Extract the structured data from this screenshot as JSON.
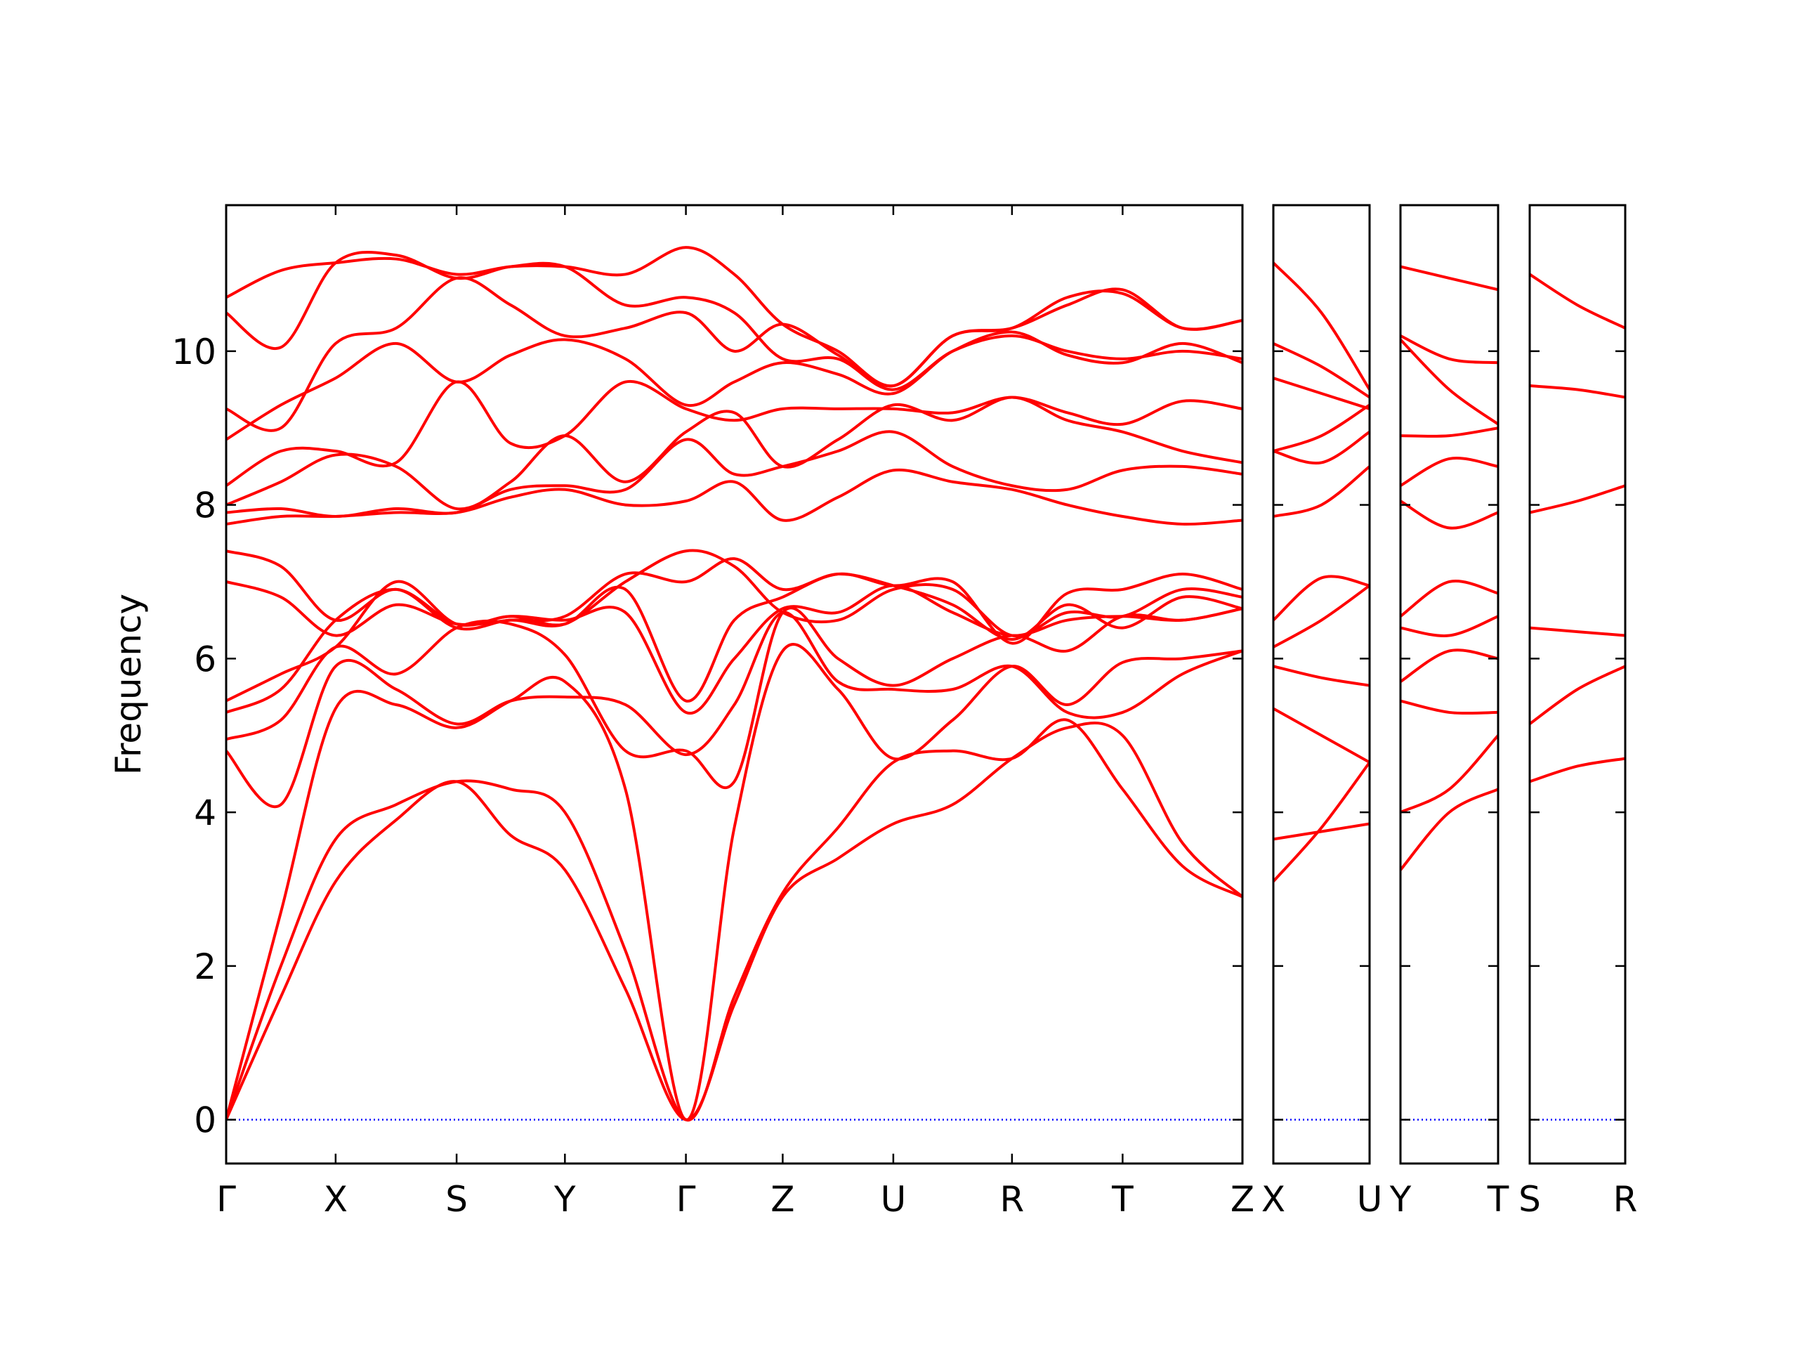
{
  "chart_data": [
    {
      "type": "line",
      "ylabel": "Frequency",
      "color": "#ff0000",
      "hline": 0,
      "hline_color": "#0000ff",
      "xlim": [
        0,
        882
      ],
      "ylim": [
        -0.57,
        11.9
      ],
      "yticks": [
        0,
        2,
        4,
        6,
        8,
        10
      ],
      "xticks": [
        {
          "value": 0,
          "label": "Γ"
        },
        {
          "value": 95,
          "label": "X"
        },
        {
          "value": 200,
          "label": "S"
        },
        {
          "value": 294,
          "label": "Y"
        },
        {
          "value": 399,
          "label": "Γ"
        },
        {
          "value": 483,
          "label": "Z"
        },
        {
          "value": 579,
          "label": "U"
        },
        {
          "value": 682,
          "label": "R"
        },
        {
          "value": 778,
          "label": "T"
        },
        {
          "value": 882,
          "label": "Z"
        }
      ],
      "x": [
        0,
        47.5,
        95,
        147.5,
        200,
        247,
        294,
        346.5,
        399,
        441,
        483,
        531,
        579,
        630.5,
        682,
        730,
        778,
        830,
        882
      ],
      "series": [
        {
          "values": [
            0,
            1.6,
            3.1,
            3.9,
            4.4,
            3.7,
            3.25,
            1.7,
            0,
            1.5,
            2.9,
            3.4,
            3.85,
            4.1,
            4.7,
            5.1,
            5.0,
            3.6,
            2.9
          ]
        },
        {
          "values": [
            0,
            2.0,
            3.65,
            4.1,
            4.4,
            4.3,
            4.0,
            2.2,
            0,
            1.6,
            2.95,
            3.8,
            4.65,
            4.8,
            4.7,
            5.2,
            4.3,
            3.3,
            2.9
          ]
        },
        {
          "values": [
            0,
            2.7,
            5.35,
            5.4,
            5.1,
            5.45,
            5.7,
            4.3,
            0,
            3.8,
            6.1,
            5.6,
            4.7,
            5.2,
            5.9,
            5.4,
            5.95,
            6.0,
            6.1
          ]
        },
        {
          "values": [
            4.8,
            4.1,
            5.9,
            5.6,
            5.15,
            5.45,
            5.5,
            5.4,
            4.75,
            5.4,
            6.6,
            5.7,
            5.6,
            5.6,
            5.9,
            5.3,
            5.3,
            5.8,
            6.1
          ]
        },
        {
          "values": [
            4.95,
            5.2,
            6.15,
            5.8,
            6.4,
            6.45,
            6.05,
            4.8,
            4.8,
            4.4,
            6.6,
            6.0,
            5.65,
            6.0,
            6.3,
            6.1,
            6.55,
            6.5,
            6.65
          ]
        },
        {
          "values": [
            5.3,
            5.6,
            6.5,
            6.9,
            6.45,
            6.55,
            6.5,
            6.6,
            5.3,
            6.0,
            6.65,
            6.6,
            6.95,
            6.6,
            6.3,
            6.5,
            6.55,
            6.5,
            6.65
          ]
        },
        {
          "values": [
            5.45,
            5.8,
            6.15,
            7.0,
            6.45,
            6.55,
            6.45,
            6.9,
            5.45,
            6.5,
            6.8,
            7.1,
            6.95,
            7.0,
            6.2,
            6.85,
            6.9,
            7.1,
            6.9
          ]
        },
        {
          "values": [
            7.0,
            6.8,
            6.3,
            6.7,
            6.45,
            6.5,
            6.55,
            7.1,
            7.0,
            7.3,
            6.9,
            7.1,
            6.95,
            6.7,
            6.25,
            6.7,
            6.4,
            6.8,
            6.65
          ]
        },
        {
          "values": [
            7.4,
            7.2,
            6.5,
            6.9,
            6.4,
            6.5,
            6.45,
            7.0,
            7.4,
            7.2,
            6.6,
            6.5,
            6.9,
            6.9,
            6.3,
            6.6,
            6.55,
            6.9,
            6.8
          ]
        },
        {
          "values": [
            7.75,
            7.85,
            7.85,
            7.9,
            7.9,
            8.1,
            8.2,
            8.0,
            8.05,
            8.3,
            7.8,
            8.1,
            8.45,
            8.3,
            8.2,
            8.0,
            7.85,
            7.75,
            7.8
          ]
        },
        {
          "values": [
            7.9,
            7.95,
            7.85,
            7.95,
            7.9,
            8.2,
            8.25,
            8.2,
            8.85,
            8.4,
            8.5,
            8.7,
            8.95,
            8.5,
            8.25,
            8.2,
            8.45,
            8.5,
            8.4
          ]
        },
        {
          "values": [
            8.0,
            8.3,
            8.65,
            8.5,
            7.95,
            8.3,
            8.9,
            8.3,
            8.95,
            9.2,
            8.5,
            8.85,
            9.3,
            9.1,
            9.4,
            9.1,
            8.95,
            8.7,
            8.55
          ]
        },
        {
          "values": [
            8.25,
            8.7,
            8.7,
            8.55,
            9.6,
            8.8,
            8.9,
            9.6,
            9.25,
            9.1,
            9.25,
            9.25,
            9.25,
            9.2,
            9.4,
            9.2,
            9.05,
            9.35,
            9.25
          ]
        },
        {
          "values": [
            8.85,
            9.3,
            9.65,
            10.1,
            9.6,
            9.95,
            10.15,
            9.9,
            9.3,
            9.6,
            9.85,
            9.7,
            9.45,
            10.0,
            10.25,
            9.95,
            9.85,
            10.1,
            9.85
          ]
        },
        {
          "values": [
            9.25,
            9.0,
            10.1,
            10.3,
            10.95,
            10.6,
            10.2,
            10.3,
            10.5,
            10.0,
            10.35,
            9.95,
            9.55,
            10.2,
            10.3,
            10.7,
            10.75,
            10.3,
            10.4
          ]
        },
        {
          "values": [
            10.5,
            10.05,
            11.15,
            11.25,
            10.95,
            11.1,
            11.1,
            10.6,
            10.7,
            10.5,
            9.9,
            9.9,
            9.5,
            10.0,
            10.2,
            10.0,
            9.9,
            10.0,
            9.9
          ]
        },
        {
          "values": [
            10.7,
            11.05,
            11.15,
            11.2,
            11.0,
            11.1,
            11.1,
            11.0,
            11.35,
            11.0,
            10.35,
            10.0,
            9.55,
            10.2,
            10.3,
            10.6,
            10.8,
            10.3,
            10.4
          ]
        }
      ]
    },
    {
      "type": "line",
      "color": "#ff0000",
      "hline": 0,
      "hline_color": "#0000ff",
      "xlim": [
        0,
        1
      ],
      "ylim": [
        -0.57,
        11.9
      ],
      "yticks": [
        0,
        2,
        4,
        6,
        8,
        10
      ],
      "xticks": [
        {
          "value": 0,
          "label": "X"
        },
        {
          "value": 1,
          "label": "U"
        }
      ],
      "x": [
        0,
        0.5,
        1
      ],
      "series": [
        {
          "values": [
            3.1,
            3.8,
            4.65
          ]
        },
        {
          "values": [
            3.65,
            3.75,
            3.85
          ]
        },
        {
          "values": [
            5.35,
            5.0,
            4.65
          ]
        },
        {
          "values": [
            5.9,
            5.75,
            5.65
          ]
        },
        {
          "values": [
            6.15,
            6.5,
            6.95
          ]
        },
        {
          "values": [
            6.5,
            7.05,
            6.95
          ]
        },
        {
          "values": [
            7.85,
            8.0,
            8.5
          ]
        },
        {
          "values": [
            8.7,
            8.55,
            8.95
          ]
        },
        {
          "values": [
            8.7,
            8.9,
            9.3
          ]
        },
        {
          "values": [
            9.65,
            9.45,
            9.25
          ]
        },
        {
          "values": [
            10.1,
            9.8,
            9.4
          ]
        },
        {
          "values": [
            11.15,
            10.5,
            9.5
          ]
        }
      ]
    },
    {
      "type": "line",
      "color": "#ff0000",
      "hline": 0,
      "hline_color": "#0000ff",
      "xlim": [
        0,
        1
      ],
      "ylim": [
        -0.57,
        11.9
      ],
      "yticks": [
        0,
        2,
        4,
        6,
        8,
        10
      ],
      "xticks": [
        {
          "value": 0,
          "label": "Y"
        },
        {
          "value": 1,
          "label": "T"
        }
      ],
      "x": [
        0,
        0.5,
        1
      ],
      "series": [
        {
          "values": [
            3.25,
            4.0,
            4.3
          ]
        },
        {
          "values": [
            4.0,
            4.3,
            5.0
          ]
        },
        {
          "values": [
            5.45,
            5.3,
            5.3
          ]
        },
        {
          "values": [
            5.7,
            6.1,
            6.0
          ]
        },
        {
          "values": [
            6.4,
            6.3,
            6.55
          ]
        },
        {
          "values": [
            6.55,
            7.0,
            6.85
          ]
        },
        {
          "values": [
            8.25,
            8.6,
            8.5
          ]
        },
        {
          "values": [
            8.05,
            7.7,
            7.9
          ]
        },
        {
          "values": [
            8.9,
            8.9,
            9.0
          ]
        },
        {
          "values": [
            10.15,
            9.5,
            9.05
          ]
        },
        {
          "values": [
            10.2,
            9.9,
            9.85
          ]
        },
        {
          "values": [
            11.1,
            10.95,
            10.8
          ]
        }
      ]
    },
    {
      "type": "line",
      "color": "#ff0000",
      "hline": 0,
      "hline_color": "#0000ff",
      "xlim": [
        0,
        1
      ],
      "ylim": [
        -0.57,
        11.9
      ],
      "yticks": [
        0,
        2,
        4,
        6,
        8,
        10
      ],
      "xticks": [
        {
          "value": 0,
          "label": "S"
        },
        {
          "value": 1,
          "label": "R"
        }
      ],
      "x": [
        0,
        0.5,
        1
      ],
      "series": [
        {
          "values": [
            4.4,
            4.6,
            4.7
          ]
        },
        {
          "values": [
            5.15,
            5.6,
            5.9
          ]
        },
        {
          "values": [
            6.4,
            6.35,
            6.3
          ]
        },
        {
          "values": [
            7.9,
            8.05,
            8.25
          ]
        },
        {
          "values": [
            9.55,
            9.5,
            9.4
          ]
        },
        {
          "values": [
            11.0,
            10.6,
            10.3
          ]
        }
      ]
    }
  ]
}
